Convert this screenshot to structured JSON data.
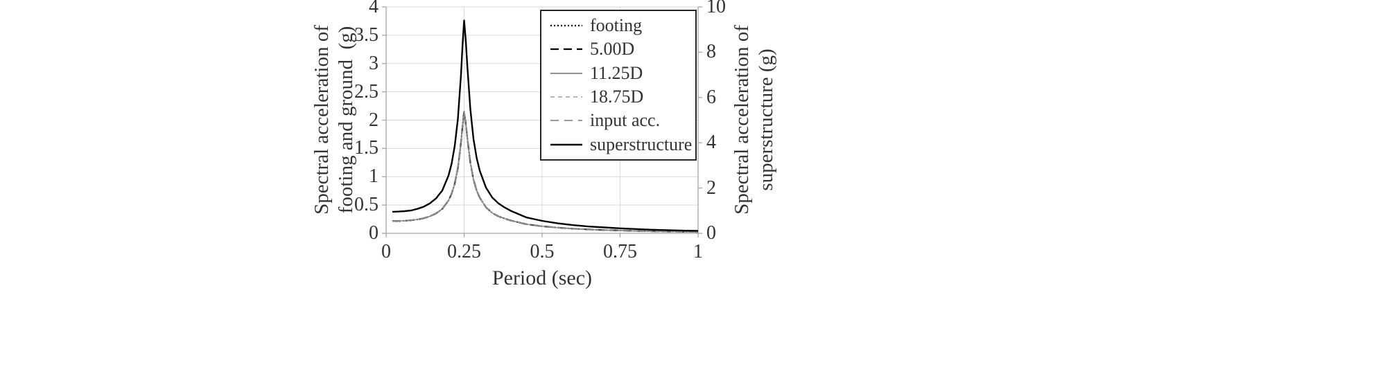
{
  "chart_data": {
    "type": "line",
    "xlabel": "Period (sec)",
    "xlim": [
      0,
      1
    ],
    "x_ticks": [
      {
        "value": 0,
        "label": "0"
      },
      {
        "value": 0.25,
        "label": "0.25"
      },
      {
        "value": 0.5,
        "label": "0.5"
      },
      {
        "value": 0.75,
        "label": "0.75"
      },
      {
        "value": 1,
        "label": "1"
      }
    ],
    "left_axis": {
      "title_lines": [
        "Spectral acceleration of",
        "footing and ground  (g)"
      ],
      "ylim": [
        0,
        4
      ],
      "ticks": [
        {
          "value": 0,
          "label": "0"
        },
        {
          "value": 0.5,
          "label": "0.5"
        },
        {
          "value": 1,
          "label": "1"
        },
        {
          "value": 1.5,
          "label": "1.5"
        },
        {
          "value": 2,
          "label": "2"
        },
        {
          "value": 2.5,
          "label": "2.5"
        },
        {
          "value": 3,
          "label": "3"
        },
        {
          "value": 3.5,
          "label": "3.5"
        },
        {
          "value": 4,
          "label": "4"
        }
      ]
    },
    "right_axis": {
      "title_lines": [
        "Spectral acceleration of",
        "superstructure (g)"
      ],
      "ylim": [
        0,
        10
      ],
      "ticks": [
        {
          "value": 0,
          "label": "0"
        },
        {
          "value": 2,
          "label": "2"
        },
        {
          "value": 4,
          "label": "4"
        },
        {
          "value": 6,
          "label": "6"
        },
        {
          "value": 8,
          "label": "8"
        },
        {
          "value": 10,
          "label": "10"
        }
      ]
    },
    "grid": "on",
    "legend_position": "top-right-inside",
    "style": {
      "grid_color": "#d9d9d9",
      "axis_color": "#a6a6a6"
    },
    "x": [
      0.02,
      0.04,
      0.06,
      0.08,
      0.1,
      0.12,
      0.14,
      0.16,
      0.18,
      0.2,
      0.21,
      0.22,
      0.23,
      0.24,
      0.245,
      0.25,
      0.255,
      0.26,
      0.27,
      0.28,
      0.29,
      0.3,
      0.32,
      0.34,
      0.36,
      0.38,
      0.4,
      0.45,
      0.5,
      0.55,
      0.6,
      0.65,
      0.7,
      0.75,
      0.8,
      0.85,
      0.9,
      0.95,
      1.0
    ],
    "series": [
      {
        "name": "footing",
        "axis": "left",
        "color": "#000000",
        "dash": "2 3",
        "width": 2.2,
        "values": [
          0.215,
          0.218,
          0.222,
          0.23,
          0.245,
          0.265,
          0.3,
          0.35,
          0.43,
          0.58,
          0.7,
          0.88,
          1.15,
          1.6,
          1.9,
          2.15,
          1.95,
          1.7,
          1.25,
          0.95,
          0.76,
          0.63,
          0.46,
          0.36,
          0.3,
          0.26,
          0.225,
          0.16,
          0.125,
          0.1,
          0.082,
          0.068,
          0.058,
          0.05,
          0.043,
          0.037,
          0.032,
          0.028,
          0.025
        ]
      },
      {
        "name": "5.00D",
        "axis": "left",
        "color": "#000000",
        "dash": "12 7",
        "width": 2.2,
        "values": [
          0.215,
          0.218,
          0.222,
          0.23,
          0.245,
          0.265,
          0.3,
          0.35,
          0.43,
          0.58,
          0.7,
          0.88,
          1.15,
          1.6,
          1.9,
          2.15,
          1.95,
          1.7,
          1.25,
          0.95,
          0.76,
          0.63,
          0.46,
          0.36,
          0.3,
          0.26,
          0.225,
          0.16,
          0.125,
          0.1,
          0.082,
          0.068,
          0.058,
          0.05,
          0.043,
          0.037,
          0.032,
          0.028,
          0.025
        ]
      },
      {
        "name": "11.25D",
        "axis": "left",
        "color": "#6e6e6e",
        "dash": "",
        "width": 1.4,
        "values": [
          0.215,
          0.218,
          0.222,
          0.23,
          0.245,
          0.265,
          0.3,
          0.35,
          0.43,
          0.58,
          0.7,
          0.88,
          1.15,
          1.6,
          1.9,
          2.15,
          1.95,
          1.7,
          1.25,
          0.95,
          0.76,
          0.63,
          0.46,
          0.36,
          0.3,
          0.26,
          0.225,
          0.16,
          0.125,
          0.1,
          0.082,
          0.068,
          0.058,
          0.05,
          0.043,
          0.037,
          0.032,
          0.028,
          0.025
        ]
      },
      {
        "name": "18.75D",
        "axis": "left",
        "color": "#9e9e9e",
        "dash": "6 5",
        "width": 1.6,
        "values": [
          0.215,
          0.218,
          0.222,
          0.23,
          0.245,
          0.265,
          0.3,
          0.35,
          0.43,
          0.58,
          0.7,
          0.88,
          1.15,
          1.6,
          1.9,
          2.15,
          1.95,
          1.7,
          1.25,
          0.95,
          0.76,
          0.63,
          0.46,
          0.36,
          0.3,
          0.26,
          0.225,
          0.16,
          0.125,
          0.1,
          0.082,
          0.068,
          0.058,
          0.05,
          0.043,
          0.037,
          0.032,
          0.028,
          0.025
        ]
      },
      {
        "name": "input acc.",
        "axis": "left",
        "color": "#8c8c8c",
        "dash": "12 8",
        "width": 1.8,
        "values": [
          0.215,
          0.218,
          0.222,
          0.23,
          0.245,
          0.265,
          0.3,
          0.35,
          0.43,
          0.58,
          0.7,
          0.88,
          1.15,
          1.6,
          1.9,
          2.15,
          1.95,
          1.7,
          1.25,
          0.95,
          0.76,
          0.63,
          0.46,
          0.36,
          0.3,
          0.26,
          0.225,
          0.16,
          0.125,
          0.1,
          0.082,
          0.068,
          0.058,
          0.05,
          0.043,
          0.037,
          0.032,
          0.028,
          0.025
        ]
      },
      {
        "name": "superstructure",
        "axis": "right",
        "color": "#000000",
        "dash": "",
        "width": 2.4,
        "values": [
          0.95,
          0.96,
          0.98,
          1.01,
          1.08,
          1.17,
          1.32,
          1.54,
          1.89,
          2.55,
          3.08,
          3.87,
          5.05,
          7.0,
          8.35,
          9.4,
          8.55,
          7.45,
          5.48,
          4.17,
          3.34,
          2.77,
          2.02,
          1.58,
          1.32,
          1.14,
          0.99,
          0.7,
          0.55,
          0.44,
          0.36,
          0.3,
          0.26,
          0.22,
          0.19,
          0.16,
          0.14,
          0.12,
          0.11
        ]
      }
    ]
  }
}
